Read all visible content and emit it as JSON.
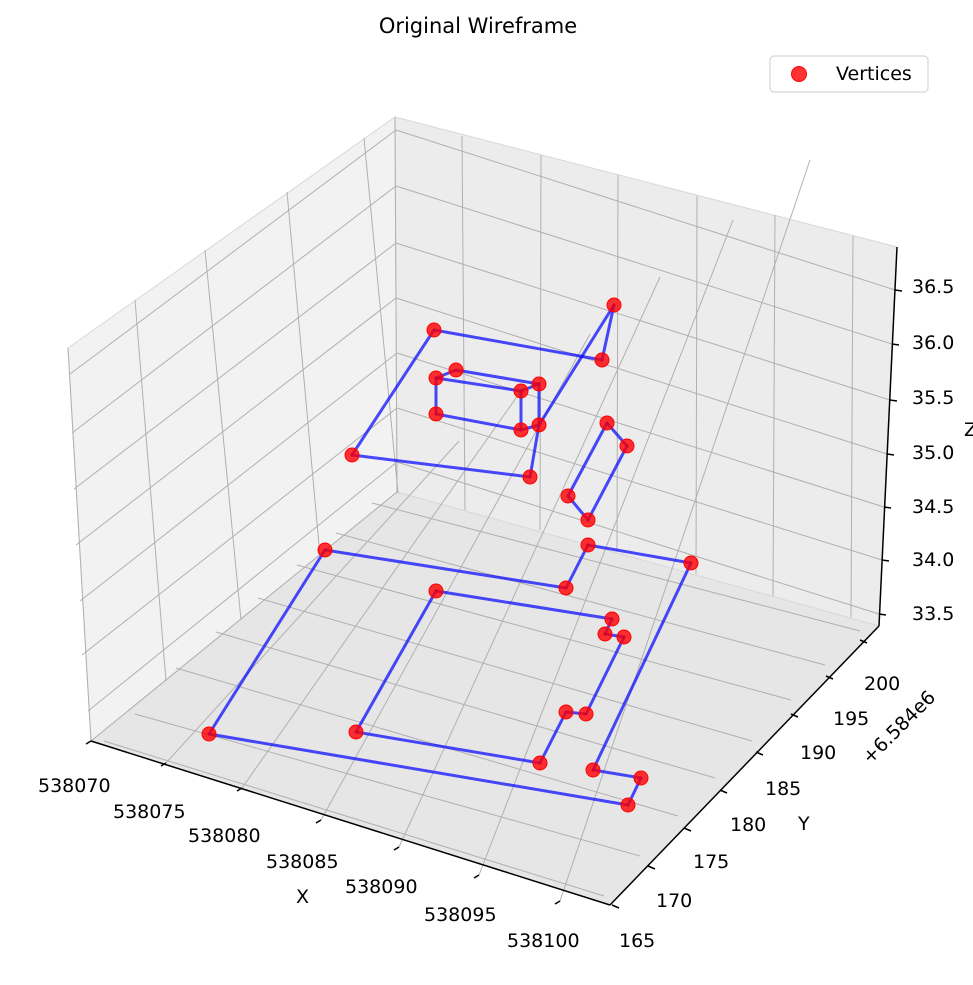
{
  "chart_data": {
    "type": "scatter",
    "title": "Original Wireframe",
    "xlabel": "X",
    "ylabel": "Y",
    "zlabel": "Z",
    "y_offset_text": "+6.584e6",
    "x_ticks": [
      "538070",
      "538075",
      "538080",
      "538085",
      "538090",
      "538095",
      "538100"
    ],
    "y_ticks": [
      "165",
      "170",
      "175",
      "180",
      "185",
      "190",
      "195",
      "200"
    ],
    "z_ticks": [
      "33.5",
      "34.0",
      "34.5",
      "35.0",
      "35.5",
      "36.0",
      "36.5"
    ],
    "legend": {
      "label": "Vertices",
      "placement": "top-right"
    },
    "grid": true,
    "colors": {
      "vertex": "#ff0000",
      "edge": "#0000ff",
      "pane": "#f2f2f2",
      "grid": "#b0b0b0"
    },
    "vertices_note": "",
    "vertices": [
      {
        "x": 538075.6,
        "y": 6584194.0,
        "z": 36.0
      },
      {
        "x": 538095.5,
        "y": 6584194.0,
        "z": 36.0
      },
      {
        "x": 538097.3,
        "y": 6584200.5,
        "z": 36.3
      },
      {
        "x": 538076.0,
        "y": 6584189.5,
        "z": 35.8
      },
      {
        "x": 538078.3,
        "y": 6584192.0,
        "z": 35.8
      },
      {
        "x": 538087.6,
        "y": 6584187.5,
        "z": 35.8
      },
      {
        "x": 538089.5,
        "y": 6584188.5,
        "z": 35.8
      },
      {
        "x": 538076.0,
        "y": 6584189.5,
        "z": 35.4
      },
      {
        "x": 538087.6,
        "y": 6584187.5,
        "z": 35.4
      },
      {
        "x": 538089.5,
        "y": 6584188.5,
        "z": 35.4
      },
      {
        "x": 538072.0,
        "y": 6584176.5,
        "z": 34.9
      },
      {
        "x": 538084.0,
        "y": 6584172.5,
        "z": 34.8
      },
      {
        "x": 538093.5,
        "y": 6584185.5,
        "z": 35.1
      },
      {
        "x": 538097.0,
        "y": 6584187.0,
        "z": 35.2
      },
      {
        "x": 538089.2,
        "y": 6584178.5,
        "z": 34.6
      },
      {
        "x": 538091.5,
        "y": 6584178.0,
        "z": 34.4
      },
      {
        "x": 538070.0,
        "y": 6584171.0,
        "z": 34.1
      },
      {
        "x": 538088.0,
        "y": 6584166.0,
        "z": 34.0
      },
      {
        "x": 538090.5,
        "y": 6584176.0,
        "z": 34.2
      },
      {
        "x": 538101.0,
        "y": 6584182.0,
        "z": 34.2
      },
      {
        "x": 538077.0,
        "y": 6584175.5,
        "z": 33.8
      },
      {
        "x": 538093.0,
        "y": 6584169.5,
        "z": 33.8
      },
      {
        "x": 538093.3,
        "y": 6584172.5,
        "z": 33.75
      },
      {
        "x": 538094.8,
        "y": 6584172.5,
        "z": 33.75
      },
      {
        "x": 538070.0,
        "y": 6584171.0,
        "z": 33.0
      },
      {
        "x": 538077.0,
        "y": 6584175.5,
        "z": 33.0
      },
      {
        "x": 538090.0,
        "y": 6584172.5,
        "z": 33.0
      },
      {
        "x": 538091.5,
        "y": 6584173.5,
        "z": 33.0
      },
      {
        "x": 538087.8,
        "y": 6584163.5,
        "z": 33.0
      },
      {
        "x": 538096.0,
        "y": 6584172.5,
        "z": 33.0
      },
      {
        "x": 538096.0,
        "y": 6584169.0,
        "z": 33.0
      },
      {
        "x": 538098.0,
        "y": 6584168.0,
        "z": 33.0
      }
    ]
  }
}
